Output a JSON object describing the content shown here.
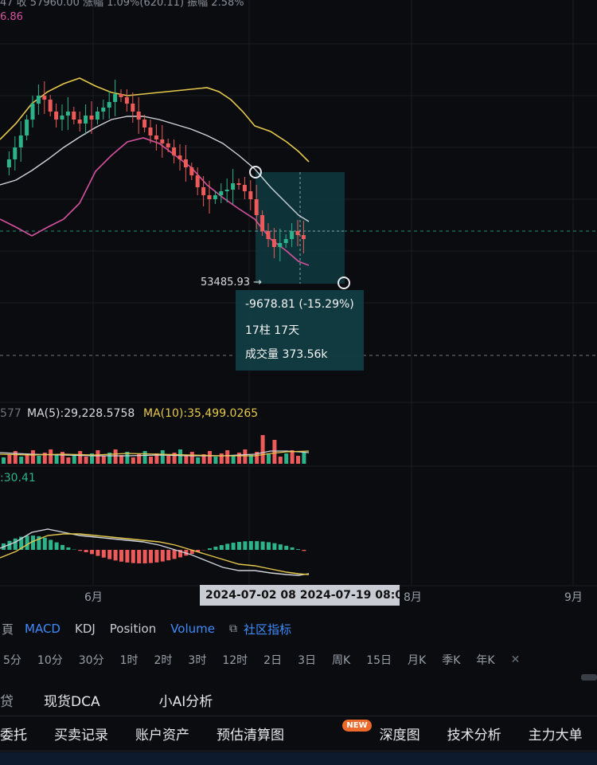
{
  "header": {
    "top_text": "47  收 57960.00  涨幅 1.09%(620.11)  振幅 2.58%",
    "ma_value": "6.86"
  },
  "measure": {
    "price_tag": "53485.93 →",
    "change": "-9678.81 (-15.29%)",
    "bars_days": "17柱 17天",
    "volume": "成交量 373.56k"
  },
  "volume_panel": {
    "prefix": "577",
    "ma5": "MA(5):29,228.5758",
    "ma10": "MA(10):35,499.0265"
  },
  "macd_panel": {
    "value": ":30.41"
  },
  "time_axis": {
    "labels": [
      "6月",
      "8月",
      "9月"
    ],
    "crosshair_range": "2024-07-02 08  2024-07-19 08:00"
  },
  "indicators": {
    "items": [
      "MACD",
      "KDJ",
      "Position",
      "Volume"
    ],
    "community": "社区指标"
  },
  "intervals": [
    "5分",
    "10分",
    "30分",
    "1时",
    "2时",
    "3时",
    "12时",
    "2日",
    "3日",
    "周K",
    "15日",
    "月K",
    "季K",
    "年K"
  ],
  "tool_tabs": [
    "现货DCA",
    "小AI分析"
  ],
  "bottom_tabs": {
    "items": [
      "委托",
      "买卖记录",
      "账户资产",
      "预估清算图",
      "深度图",
      "技术分析",
      "主力大单"
    ],
    "new_badge": "NEW"
  },
  "colors": {
    "up": "#2bb38a",
    "down": "#ee5a5a",
    "accent_blue": "#3d8bff",
    "ma_yellow": "#e6c84b"
  }
}
